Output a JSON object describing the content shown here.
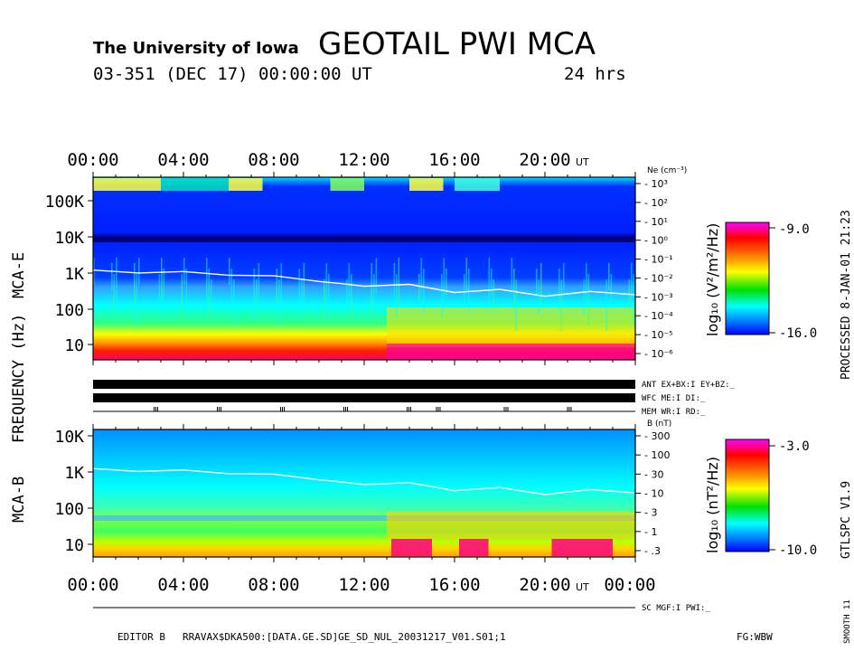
{
  "header": {
    "institution": "The University of Iowa",
    "title": "GEOTAIL PWI MCA",
    "date_line": "03-351 (DEC 17) 00:00:00 UT",
    "duration": "24 hrs"
  },
  "side": {
    "processed": "PROCESSED  8-JAN-01  21:23",
    "version": "GTLSPC  V1.9",
    "smooth": "SMOOTH 11"
  },
  "footer": {
    "editor": "EDITOR B",
    "path": "RRAVAX$DKA500:[DATA.GE.SD]GE_SD_NUL_20031217_V01.S01;1",
    "flags": "FG:WBW"
  },
  "status": {
    "ant": "ANT EX+BX:I EY+BZ:_",
    "wfc": "WFC ME:I    DI:_",
    "mem": "MEM WR:I    RD:_",
    "sc": "SC MGF:I   PWI:_"
  },
  "colors": {
    "spectrogram_scale": [
      "#ff00ff",
      "#ff0000",
      "#ff8000",
      "#ffff00",
      "#00e000",
      "#00ffff",
      "#0080ff",
      "#0000ff"
    ],
    "density_line": "#ffffff"
  },
  "chart_data": [
    {
      "type": "heatmap",
      "title": "MCA-E",
      "ylabel": "FREQUENCY (Hz)",
      "xticks": [
        "00:00",
        "04:00",
        "08:00",
        "12:00",
        "16:00",
        "20:00"
      ],
      "x_unit": "UT",
      "yticks": [
        "100K",
        "10K",
        "1K",
        "100",
        "10"
      ],
      "y_scale": "log",
      "right_axis_label": "Ne (cm⁻³)",
      "right_axis_ticks": [
        "10³",
        "10²",
        "10¹",
        "10⁰",
        "10⁻¹",
        "10⁻²",
        "10⁻³",
        "10⁻⁴",
        "10⁻⁵",
        "10⁻⁶"
      ],
      "colorbar": {
        "label": "log₁₀ (V²/m²/Hz)",
        "max": "-9.0",
        "min": "-16.0"
      },
      "overlay_line_hours": [
        0,
        2,
        4,
        6,
        8,
        10,
        11,
        12,
        14,
        16,
        18,
        20,
        22,
        24
      ],
      "overlay_line_freq_hz": [
        1200,
        1150,
        1100,
        1000,
        850,
        680,
        520,
        560,
        450,
        380,
        330,
        300,
        290,
        330
      ]
    },
    {
      "type": "heatmap",
      "title": "MCA-B",
      "xticks": [
        "00:00",
        "04:00",
        "08:00",
        "12:00",
        "16:00",
        "20:00",
        "00:00"
      ],
      "x_unit": "UT",
      "yticks": [
        "10K",
        "1K",
        "100",
        "10"
      ],
      "y_scale": "log",
      "right_axis_label": "B (nT)",
      "right_axis_ticks": [
        "300",
        "100",
        "30",
        "10",
        "3",
        "1",
        ".3"
      ],
      "colorbar": {
        "label": "log₁₀ (nT²/Hz)",
        "max": "-3.0",
        "min": "-10.0"
      },
      "overlay_line_hours": [
        0,
        2,
        4,
        6,
        8,
        10,
        11,
        12,
        14,
        16,
        18,
        20,
        22,
        24
      ],
      "overlay_line_freq_hz": [
        1200,
        1150,
        1100,
        1000,
        850,
        680,
        520,
        560,
        450,
        380,
        330,
        300,
        290,
        330
      ]
    }
  ]
}
